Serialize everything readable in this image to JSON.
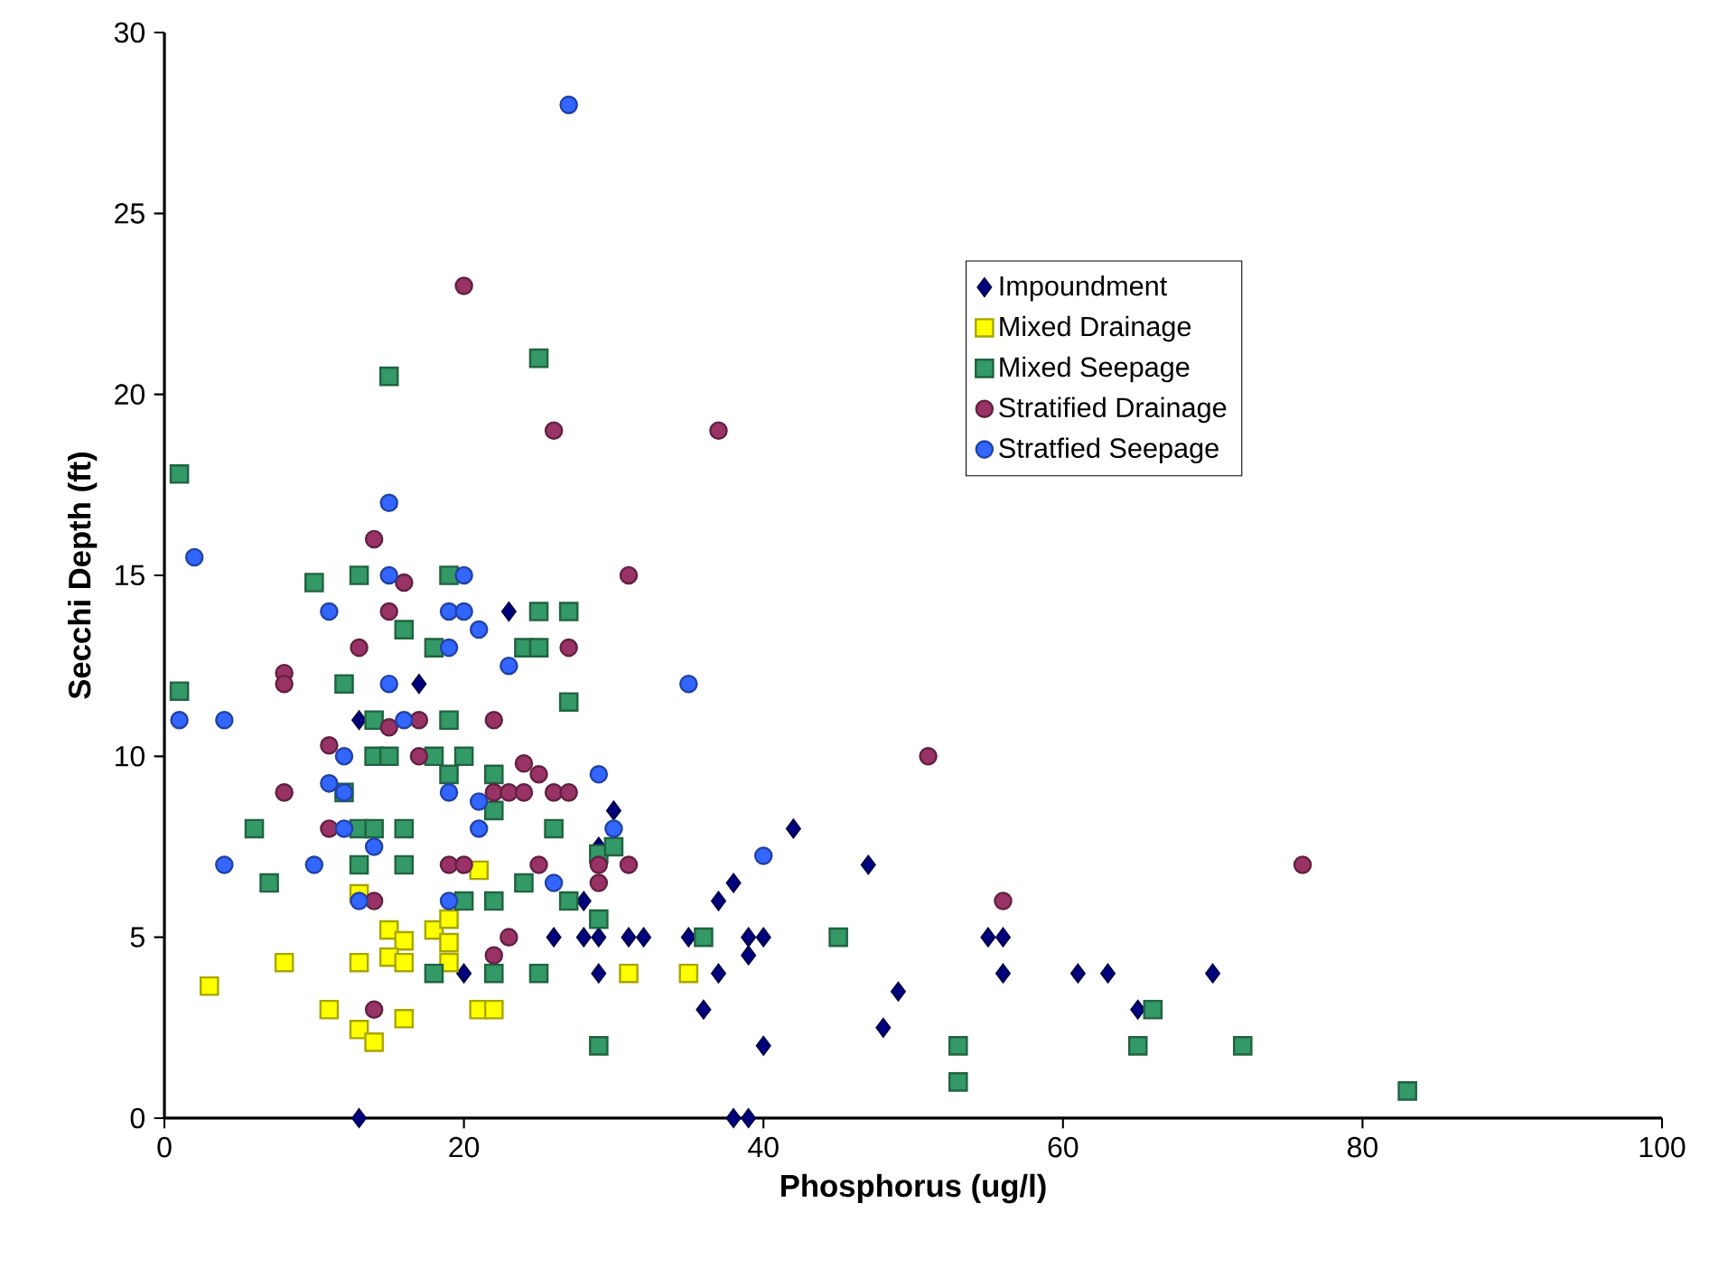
{
  "chart_data": {
    "type": "scatter",
    "xlabel": "Phosphorus (ug/l)",
    "ylabel": "Secchi Depth (ft)",
    "xlim": [
      0,
      100
    ],
    "ylim": [
      0,
      30
    ],
    "xticks": [
      0,
      20,
      40,
      60,
      80,
      100
    ],
    "yticks": [
      0,
      5,
      10,
      15,
      20,
      25,
      30
    ],
    "grid": false,
    "legend": "top right",
    "series": [
      {
        "name": "Impoundment",
        "color": "#000080",
        "marker": "diamond",
        "x": [
          13,
          13,
          17,
          20,
          23,
          26,
          28,
          28,
          29,
          29,
          29,
          30,
          31,
          32,
          35,
          36,
          37,
          37,
          38,
          38,
          39,
          39,
          39,
          40,
          40,
          42,
          47,
          48,
          49,
          55,
          56,
          56,
          61,
          63,
          65,
          70
        ],
        "values": [
          0,
          11,
          12,
          4,
          14,
          5,
          6,
          5,
          7.5,
          5,
          4,
          8.5,
          5,
          5,
          5,
          3,
          4,
          6,
          6.5,
          0,
          0,
          5,
          4.5,
          5,
          2,
          8,
          7,
          2.5,
          3.5,
          5,
          5,
          4,
          4,
          4,
          3,
          4
        ]
      },
      {
        "name": "Mixed Drainage",
        "color": "#ffff00",
        "marker": "square",
        "x": [
          3,
          8,
          13,
          11,
          13,
          14,
          13,
          15,
          16,
          15,
          16,
          16,
          18,
          19,
          19,
          19,
          21,
          21,
          22,
          31,
          35
        ],
        "values": [
          3.65,
          4.3,
          4.3,
          3,
          2.45,
          2.1,
          6.2,
          5.2,
          4.9,
          4.45,
          4.3,
          2.75,
          5.2,
          5.5,
          4.85,
          4.3,
          6.85,
          3,
          3,
          4,
          4
        ]
      },
      {
        "name": "Mixed Seepage",
        "color": "#339966",
        "marker": "square",
        "x": [
          1,
          1,
          15,
          25,
          10,
          13,
          19,
          16,
          18,
          12,
          14,
          19,
          14,
          15,
          18,
          20,
          19,
          22,
          12,
          22,
          6,
          13,
          14,
          16,
          13,
          16,
          25,
          27,
          24,
          25,
          27,
          26,
          29,
          30,
          24,
          27,
          20,
          22,
          29,
          36,
          18,
          22,
          25,
          29,
          7,
          45,
          53,
          53,
          65,
          66,
          72,
          83
        ],
        "values": [
          17.8,
          11.8,
          20.5,
          21,
          14.8,
          15,
          15,
          13.5,
          13,
          12,
          11,
          11,
          10,
          10,
          10,
          10,
          9.5,
          9.5,
          9,
          8.5,
          8,
          8,
          8,
          8,
          7,
          7,
          14,
          14,
          13,
          13,
          11.5,
          8,
          7.3,
          7.5,
          6.5,
          6,
          6,
          6,
          5.5,
          5,
          4,
          4,
          4,
          2,
          6.5,
          5,
          2,
          1,
          2,
          3,
          2,
          0.75
        ]
      },
      {
        "name": "Stratified Drainage",
        "color": "#993366",
        "marker": "circle",
        "x": [
          20,
          26,
          37,
          31,
          14,
          16,
          15,
          13,
          8,
          8,
          17,
          15,
          22,
          11,
          17,
          8,
          22,
          23,
          24,
          26,
          27,
          24,
          25,
          27,
          11,
          19,
          20,
          25,
          29,
          29,
          31,
          23,
          22,
          14,
          14,
          51,
          56,
          76
        ],
        "values": [
          23,
          19,
          19,
          15,
          16,
          14.8,
          14,
          13,
          12.3,
          12,
          11,
          10.8,
          11,
          10.3,
          10,
          9,
          9,
          9,
          9,
          9,
          9,
          9.8,
          9.5,
          13,
          8,
          7,
          7,
          7,
          7,
          6.5,
          7,
          5,
          4.5,
          6,
          3,
          10,
          6,
          7
        ]
      },
      {
        "name": "Stratfied Seepage",
        "color": "#3366ff",
        "marker": "circle",
        "x": [
          27,
          15,
          2,
          15,
          20,
          11,
          19,
          20,
          21,
          19,
          23,
          15,
          35,
          1,
          4,
          16,
          12,
          11,
          12,
          19,
          21,
          29,
          12,
          21,
          30,
          14,
          4,
          10,
          40,
          26,
          13,
          19
        ],
        "values": [
          28,
          17,
          15.5,
          15,
          15,
          14,
          14,
          14,
          13.5,
          13,
          12.5,
          12,
          12,
          11,
          11,
          11,
          10,
          9.25,
          9,
          9,
          8.75,
          9.5,
          8,
          8,
          8,
          7.5,
          7,
          7,
          7.25,
          6.5,
          6,
          6
        ]
      }
    ]
  }
}
